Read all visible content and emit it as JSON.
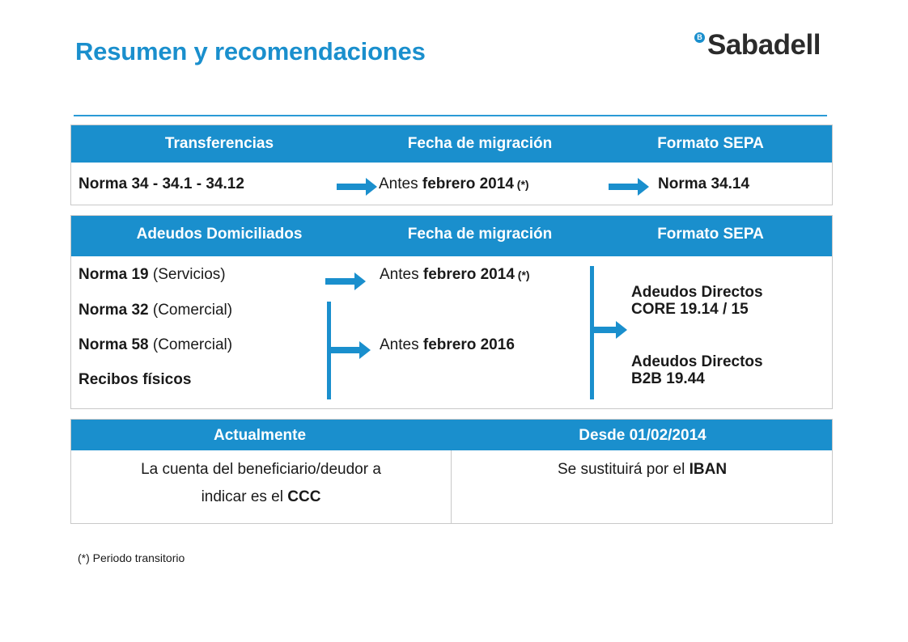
{
  "title": "Resumen y recomendaciones",
  "logo": {
    "mark": "B",
    "text": "Sabadell"
  },
  "transferencias": {
    "headers": [
      "Transferencias",
      "Fecha de migración",
      "Formato SEPA"
    ],
    "row": {
      "origen": "Norma 34 - 34.1 - 34.12",
      "fecha_pre": "Antes ",
      "fecha_bold": "febrero 2014",
      "fecha_note": " (*)",
      "formato": "Norma 34.14"
    }
  },
  "adeudos": {
    "headers": [
      "Adeudos Domiciliados",
      "Fecha de migración",
      "Formato SEPA"
    ],
    "items": [
      {
        "bold": "Norma 19",
        "rest": " (Servicios)"
      },
      {
        "bold": "Norma 32",
        "rest": " (Comercial)"
      },
      {
        "bold": "Norma 58",
        "rest": " (Comercial)"
      },
      {
        "bold": "Recibos físicos",
        "rest": ""
      }
    ],
    "fecha1": {
      "pre": "Antes ",
      "bold": "febrero 2014",
      "note": " (*)"
    },
    "fecha2": {
      "pre": "Antes ",
      "bold": "febrero 2016"
    },
    "formato1": {
      "line1": "Adeudos Directos",
      "line2": "CORE 19.14 / 15"
    },
    "formato2": {
      "line1": "Adeudos Directos",
      "line2": "B2B 19.44"
    }
  },
  "cuenta": {
    "headers": [
      "Actualmente",
      "Desde 01/02/2014"
    ],
    "left": {
      "line1": "La cuenta del beneficiario/deudor a",
      "line2_pre": "indicar es el ",
      "line2_bold": "CCC"
    },
    "right": {
      "pre": "Se sustituirá por el ",
      "bold": "IBAN"
    }
  },
  "footnote": "(*) Periodo transitorio",
  "colors": {
    "accent": "#1a8fcd",
    "arrow": "#1a8fcd"
  }
}
